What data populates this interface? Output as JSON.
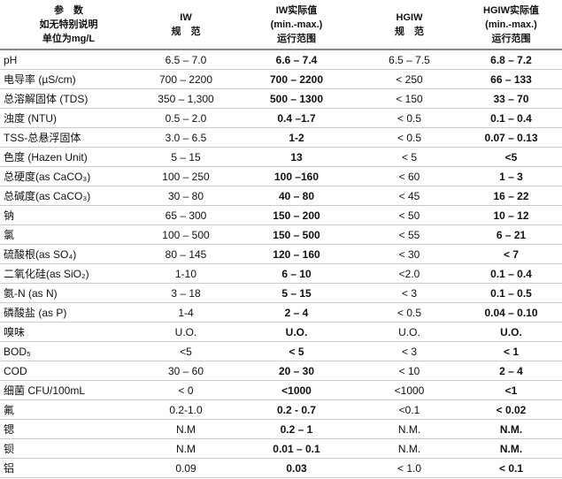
{
  "table": {
    "header": [
      [
        "参　数",
        "如无特别说明",
        "单位为mg/L"
      ],
      [
        "IW",
        "规　范"
      ],
      [
        "IW实际值",
        "(min.-max.)",
        "运行范围"
      ],
      [
        "HGIW",
        "规　范"
      ],
      [
        "HGIW实际值",
        "(min.-max.)",
        "运行范围"
      ]
    ],
    "rows": [
      [
        "pH",
        "6.5 – 7.0",
        "6.6 – 7.4",
        "6.5 – 7.5",
        "6.8 – 7.2"
      ],
      [
        "电导率 (µS/cm)",
        "700 – 2200",
        "700 – 2200",
        "< 250",
        "66 – 133"
      ],
      [
        "总溶解固体 (TDS)",
        "350 – 1,300",
        "500 – 1300",
        "< 150",
        "33 – 70"
      ],
      [
        "浊度 (NTU)",
        "0.5 – 2.0",
        "0.4 –1.7",
        "< 0.5",
        "0.1 – 0.4"
      ],
      [
        "TSS-总悬浮固体",
        "3.0 – 6.5",
        "1-2",
        "< 0.5",
        "0.07 – 0.13"
      ],
      [
        "色度 (Hazen Unit)",
        "5 – 15",
        "13",
        "< 5",
        "<5"
      ],
      [
        "总硬度(as CaCO₃)",
        "100 – 250",
        "100 –160",
        "< 60",
        "1 – 3"
      ],
      [
        "总碱度(as CaCO₃)",
        "30 – 80",
        "40 – 80",
        "< 45",
        "16 – 22"
      ],
      [
        "钠",
        "65 – 300",
        "150 – 200",
        "< 50",
        "10 – 12"
      ],
      [
        "氯",
        "100 – 500",
        "150 – 500",
        "< 55",
        "6 – 21"
      ],
      [
        "硫酸根(as SO₄)",
        "80 – 145",
        "120 – 160",
        "< 30",
        "< 7"
      ],
      [
        "二氧化硅(as SiO₂)",
        "1-10",
        "6 – 10",
        "<2.0",
        "0.1 – 0.4"
      ],
      [
        "氨-N (as N)",
        "3 – 18",
        "5 – 15",
        "< 3",
        "0.1 – 0.5"
      ],
      [
        "磷酸盐 (as P)",
        "1-4",
        "2 – 4",
        "< 0.5",
        "0.04 – 0.10"
      ],
      [
        "嗅味",
        "U.O.",
        "U.O.",
        "U.O.",
        "U.O."
      ],
      [
        "BOD₅",
        "<5",
        "< 5",
        "< 3",
        "< 1"
      ],
      [
        "COD",
        "30 – 60",
        "20 – 30",
        "< 10",
        "2 – 4"
      ],
      [
        "细菌 CFU/100mL",
        "< 0",
        "<1000",
        "<1000",
        "<1"
      ],
      [
        "氟",
        "0.2-1.0",
        "0.2 - 0.7",
        "<0.1",
        "< 0.02"
      ],
      [
        "锶",
        "N.M",
        "0.2 – 1",
        "N.M.",
        "N.M."
      ],
      [
        "钡",
        "N.M",
        "0.01 – 0.1",
        "N.M.",
        "N.M."
      ],
      [
        "铝",
        "0.09",
        "0.03",
        "< 1.0",
        "< 0.1"
      ]
    ]
  }
}
